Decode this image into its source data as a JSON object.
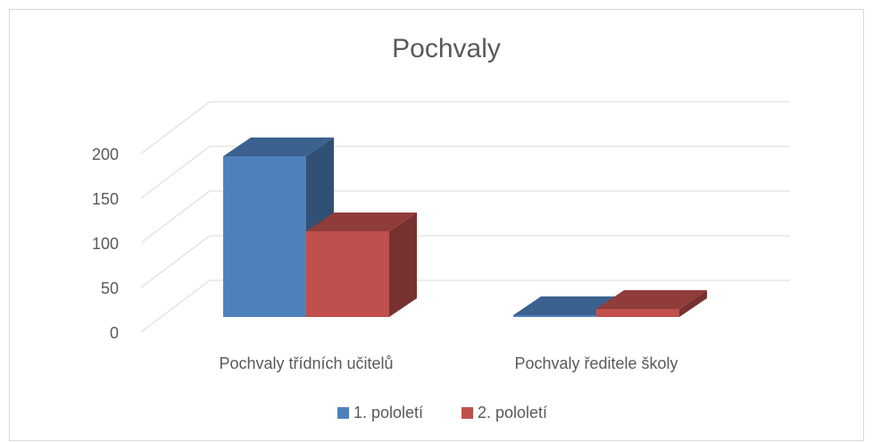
{
  "chart_data": {
    "type": "bar3d",
    "title": "Pochvaly",
    "categories": [
      "Pochvaly třídních učitelů",
      "Pochvaly ředitele školy"
    ],
    "series": [
      {
        "name": "1. pololetí",
        "color": "#4f81bd",
        "values": [
          180,
          2
        ]
      },
      {
        "name": "2. pololetí",
        "color": "#c0504d",
        "values": [
          96,
          9
        ]
      }
    ],
    "ylim": [
      0,
      200
    ],
    "yticks": [
      0,
      50,
      100,
      150,
      200
    ],
    "grid": true,
    "legend": "bottom"
  }
}
